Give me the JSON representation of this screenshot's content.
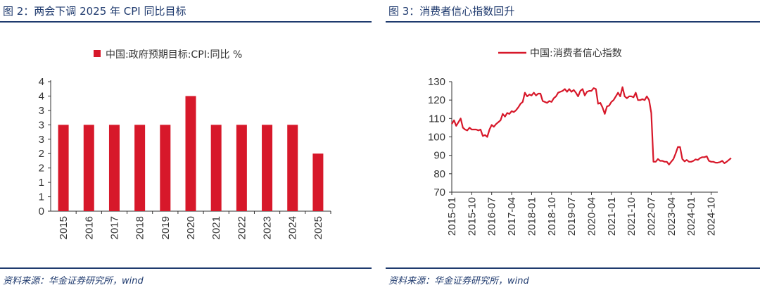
{
  "left": {
    "title": "图 2：两会下调 2025 年 CPI 同比目标",
    "source": "资料来源：华金证券研究所，wind"
  },
  "right": {
    "title": "图 3：消费者信心指数回升",
    "source": "资料来源：华金证券研究所，wind"
  },
  "colors": {
    "accent": "#d7182a",
    "rule": "#1f3a6e",
    "axis": "#333333"
  },
  "chart_data": [
    {
      "type": "bar",
      "legend": "中国:政府预期目标:CPI:同比 %",
      "legend_position": "top-center",
      "categories": [
        "2015",
        "2016",
        "2017",
        "2018",
        "2019",
        "2020",
        "2021",
        "2022",
        "2023",
        "2024",
        "2025"
      ],
      "values": [
        3,
        3,
        3,
        3,
        3,
        4,
        3,
        3,
        3,
        3,
        2
      ],
      "yticks": [
        "0",
        "1",
        "1",
        "2",
        "2",
        "3",
        "3",
        "3",
        "4",
        "4"
      ],
      "ylim": [
        0,
        4.5
      ],
      "grid": false
    },
    {
      "type": "line",
      "legend": "中国:消费者信心指数",
      "legend_position": "top-center",
      "xticks": [
        "2015-01",
        "2015-10",
        "2016-07",
        "2017-04",
        "2018-01",
        "2018-10",
        "2019-07",
        "2020-04",
        "2021-01",
        "2021-10",
        "2022-07",
        "2023-04",
        "2024-01",
        "2024-10"
      ],
      "x_start": "2015-01",
      "x_end": "2025-01",
      "ylim": [
        70,
        130
      ],
      "yticks": [
        70,
        80,
        90,
        100,
        110,
        120,
        130
      ],
      "grid": false,
      "values": [
        107,
        109,
        106,
        108,
        110,
        105,
        104,
        103.5,
        105,
        104,
        104,
        104,
        103.5,
        104,
        100.5,
        101,
        100,
        104,
        106.5,
        105.5,
        107,
        108,
        109,
        112.5,
        111,
        113,
        112.5,
        114,
        113.5,
        114.5,
        116,
        118,
        119,
        124,
        122,
        123,
        122.5,
        124,
        122.5,
        123.5,
        123.5,
        119.5,
        119,
        118.5,
        119.5,
        119,
        121,
        122,
        124,
        124.5,
        125,
        126,
        124.5,
        126,
        124.5,
        125.5,
        124,
        122,
        125,
        126,
        122.5,
        124.5,
        125,
        125,
        126.5,
        126,
        118,
        118.5,
        116,
        112.5,
        116.5,
        117,
        119,
        120,
        122,
        124,
        122,
        127,
        122,
        121,
        122,
        122,
        121.5,
        124,
        120,
        120,
        120.5,
        120,
        122,
        120,
        113,
        86.5,
        86.5,
        88,
        87,
        87,
        86.5,
        86.5,
        85,
        86.5,
        88,
        91,
        94.5,
        94.5,
        88,
        86.7,
        87.5,
        86.5,
        86.5,
        87,
        87.8,
        87.5,
        88.5,
        89,
        89,
        89.5,
        87,
        86.5,
        86.5,
        86,
        86,
        86.3,
        87,
        85.7,
        86.5,
        87.5,
        88.5
      ]
    }
  ]
}
